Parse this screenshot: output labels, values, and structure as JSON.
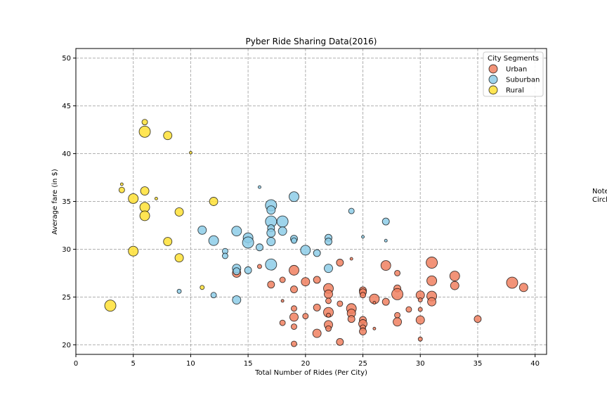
{
  "chart_data": {
    "type": "scatter",
    "title": "Pyber Ride Sharing Data(2016)",
    "xlabel": "Total Number of Rides (Per City)",
    "ylabel": "Average fare (in $)",
    "xlim": [
      0,
      41
    ],
    "ylim": [
      19,
      51
    ],
    "xticks": [
      0,
      5,
      10,
      15,
      20,
      25,
      30,
      35,
      40
    ],
    "yticks": [
      20,
      25,
      30,
      35,
      40,
      45,
      50
    ],
    "grid": true,
    "legend": {
      "title": "City Segments",
      "placement": "top-right"
    },
    "series": [
      {
        "name": "Urban",
        "color": "#F08060",
        "points": [
          {
            "x": 14,
            "y": 27.5,
            "r": 6
          },
          {
            "x": 16,
            "y": 28.2,
            "r": 3
          },
          {
            "x": 17,
            "y": 26.3,
            "r": 5
          },
          {
            "x": 18,
            "y": 26.8,
            "r": 4
          },
          {
            "x": 18,
            "y": 24.6,
            "r": 2
          },
          {
            "x": 18,
            "y": 22.3,
            "r": 4
          },
          {
            "x": 19,
            "y": 27.8,
            "r": 7
          },
          {
            "x": 19,
            "y": 25.8,
            "r": 5
          },
          {
            "x": 19,
            "y": 23.8,
            "r": 4
          },
          {
            "x": 19,
            "y": 22.9,
            "r": 6
          },
          {
            "x": 19,
            "y": 21.9,
            "r": 4
          },
          {
            "x": 19,
            "y": 20.1,
            "r": 4
          },
          {
            "x": 20,
            "y": 26.6,
            "r": 6
          },
          {
            "x": 20,
            "y": 23.0,
            "r": 4
          },
          {
            "x": 21,
            "y": 26.8,
            "r": 5
          },
          {
            "x": 21,
            "y": 23.9,
            "r": 5
          },
          {
            "x": 21,
            "y": 21.2,
            "r": 6
          },
          {
            "x": 22,
            "y": 25.9,
            "r": 7
          },
          {
            "x": 22,
            "y": 25.3,
            "r": 6
          },
          {
            "x": 22,
            "y": 24.6,
            "r": 4
          },
          {
            "x": 22,
            "y": 23.4,
            "r": 7
          },
          {
            "x": 22,
            "y": 23.1,
            "r": 3
          },
          {
            "x": 22,
            "y": 22.1,
            "r": 6
          },
          {
            "x": 22,
            "y": 21.7,
            "r": 4
          },
          {
            "x": 23,
            "y": 28.6,
            "r": 5
          },
          {
            "x": 23,
            "y": 24.3,
            "r": 4
          },
          {
            "x": 23,
            "y": 20.3,
            "r": 5
          },
          {
            "x": 24,
            "y": 29.0,
            "r": 2
          },
          {
            "x": 24,
            "y": 23.8,
            "r": 7
          },
          {
            "x": 24,
            "y": 23.3,
            "r": 6
          },
          {
            "x": 24,
            "y": 22.7,
            "r": 5
          },
          {
            "x": 25,
            "y": 25.7,
            "r": 5
          },
          {
            "x": 25,
            "y": 25.5,
            "r": 5
          },
          {
            "x": 25,
            "y": 25.2,
            "r": 4
          },
          {
            "x": 25,
            "y": 22.6,
            "r": 5
          },
          {
            "x": 25,
            "y": 22.2,
            "r": 6
          },
          {
            "x": 25,
            "y": 21.8,
            "r": 4
          },
          {
            "x": 25,
            "y": 21.4,
            "r": 5
          },
          {
            "x": 26,
            "y": 24.8,
            "r": 7
          },
          {
            "x": 26,
            "y": 24.4,
            "r": 2
          },
          {
            "x": 26,
            "y": 21.7,
            "r": 2
          },
          {
            "x": 27,
            "y": 28.3,
            "r": 7
          },
          {
            "x": 27,
            "y": 24.5,
            "r": 5
          },
          {
            "x": 28,
            "y": 27.5,
            "r": 4
          },
          {
            "x": 28,
            "y": 25.9,
            "r": 5
          },
          {
            "x": 28,
            "y": 25.3,
            "r": 8
          },
          {
            "x": 28,
            "y": 23.1,
            "r": 4
          },
          {
            "x": 28,
            "y": 22.4,
            "r": 6
          },
          {
            "x": 29,
            "y": 23.7,
            "r": 4
          },
          {
            "x": 30,
            "y": 25.2,
            "r": 6
          },
          {
            "x": 30,
            "y": 24.7,
            "r": 3
          },
          {
            "x": 30,
            "y": 23.7,
            "r": 3
          },
          {
            "x": 30,
            "y": 22.6,
            "r": 6
          },
          {
            "x": 30,
            "y": 20.6,
            "r": 3
          },
          {
            "x": 31,
            "y": 28.6,
            "r": 8
          },
          {
            "x": 31,
            "y": 26.7,
            "r": 7
          },
          {
            "x": 31,
            "y": 25.1,
            "r": 7
          },
          {
            "x": 31,
            "y": 24.5,
            "r": 6
          },
          {
            "x": 33,
            "y": 27.2,
            "r": 7
          },
          {
            "x": 33,
            "y": 26.2,
            "r": 6
          },
          {
            "x": 35,
            "y": 22.7,
            "r": 5
          },
          {
            "x": 38,
            "y": 26.5,
            "r": 8
          },
          {
            "x": 39,
            "y": 26.0,
            "r": 6
          }
        ]
      },
      {
        "name": "Suburban",
        "color": "#8DCCE8",
        "points": [
          {
            "x": 9,
            "y": 25.6,
            "r": 3
          },
          {
            "x": 11,
            "y": 32.0,
            "r": 6
          },
          {
            "x": 12,
            "y": 30.9,
            "r": 7
          },
          {
            "x": 12,
            "y": 25.2,
            "r": 4
          },
          {
            "x": 13,
            "y": 29.8,
            "r": 4
          },
          {
            "x": 13,
            "y": 29.3,
            "r": 4
          },
          {
            "x": 14,
            "y": 31.9,
            "r": 7
          },
          {
            "x": 14,
            "y": 28.0,
            "r": 6
          },
          {
            "x": 14,
            "y": 27.7,
            "r": 5
          },
          {
            "x": 14,
            "y": 24.7,
            "r": 6
          },
          {
            "x": 15,
            "y": 31.2,
            "r": 7
          },
          {
            "x": 15,
            "y": 30.7,
            "r": 8
          },
          {
            "x": 15,
            "y": 27.8,
            "r": 5
          },
          {
            "x": 16,
            "y": 36.5,
            "r": 2
          },
          {
            "x": 16,
            "y": 30.2,
            "r": 5
          },
          {
            "x": 17,
            "y": 34.6,
            "r": 8
          },
          {
            "x": 17,
            "y": 34.1,
            "r": 6
          },
          {
            "x": 17,
            "y": 32.9,
            "r": 8
          },
          {
            "x": 17,
            "y": 32.2,
            "r": 5
          },
          {
            "x": 17,
            "y": 31.7,
            "r": 6
          },
          {
            "x": 17,
            "y": 30.8,
            "r": 6
          },
          {
            "x": 17,
            "y": 28.4,
            "r": 8
          },
          {
            "x": 18,
            "y": 32.9,
            "r": 8
          },
          {
            "x": 18,
            "y": 31.9,
            "r": 6
          },
          {
            "x": 19,
            "y": 35.5,
            "r": 7
          },
          {
            "x": 19,
            "y": 31.1,
            "r": 5
          },
          {
            "x": 19,
            "y": 30.9,
            "r": 4
          },
          {
            "x": 20,
            "y": 29.9,
            "r": 7
          },
          {
            "x": 21,
            "y": 29.6,
            "r": 5
          },
          {
            "x": 22,
            "y": 31.2,
            "r": 5
          },
          {
            "x": 22,
            "y": 30.8,
            "r": 5
          },
          {
            "x": 22,
            "y": 28.0,
            "r": 6
          },
          {
            "x": 24,
            "y": 34.0,
            "r": 4
          },
          {
            "x": 25,
            "y": 31.3,
            "r": 2
          },
          {
            "x": 27,
            "y": 32.9,
            "r": 5
          },
          {
            "x": 27,
            "y": 30.9,
            "r": 2
          }
        ]
      },
      {
        "name": "Rural",
        "color": "#FFE135",
        "points": [
          {
            "x": 3,
            "y": 24.1,
            "r": 8
          },
          {
            "x": 4,
            "y": 36.8,
            "r": 2
          },
          {
            "x": 4,
            "y": 36.2,
            "r": 4
          },
          {
            "x": 5,
            "y": 35.3,
            "r": 7
          },
          {
            "x": 5,
            "y": 29.8,
            "r": 7
          },
          {
            "x": 6,
            "y": 43.3,
            "r": 4
          },
          {
            "x": 6,
            "y": 42.3,
            "r": 8
          },
          {
            "x": 6,
            "y": 36.1,
            "r": 6
          },
          {
            "x": 6,
            "y": 34.4,
            "r": 7
          },
          {
            "x": 6,
            "y": 33.5,
            "r": 7
          },
          {
            "x": 7,
            "y": 35.3,
            "r": 2
          },
          {
            "x": 8,
            "y": 41.9,
            "r": 6
          },
          {
            "x": 8,
            "y": 30.8,
            "r": 6
          },
          {
            "x": 9,
            "y": 33.9,
            "r": 6
          },
          {
            "x": 9,
            "y": 29.1,
            "r": 6
          },
          {
            "x": 10,
            "y": 40.1,
            "r": 2
          },
          {
            "x": 11,
            "y": 26.0,
            "r": 3
          },
          {
            "x": 12,
            "y": 35.0,
            "r": 6
          }
        ]
      }
    ],
    "note_text": [
      "Note:",
      "Circle size correlates with driver count per city."
    ]
  }
}
